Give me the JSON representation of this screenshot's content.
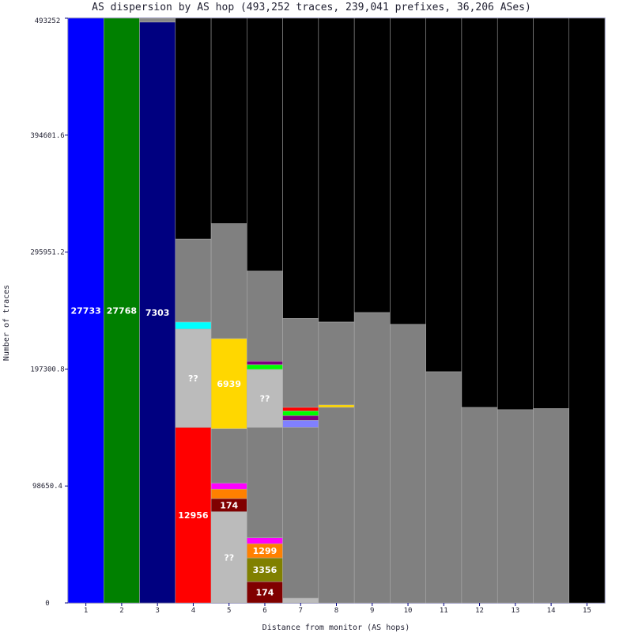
{
  "chart_data": {
    "type": "bar",
    "title": "AS dispersion by AS hop (493,252 traces, 239,041 prefixes, 36,206 ASes)",
    "xlabel": "Distance from monitor (AS hops)",
    "ylabel": "Number of traces",
    "ylim": [
      0,
      493252
    ],
    "yticks": [
      "0",
      "98650.4",
      "197300.8",
      "295951.2",
      "394601.6",
      "493252"
    ],
    "yticks_values": [
      0,
      98650.4,
      197300.8,
      295951.2,
      394601.6,
      493252
    ],
    "categories": [
      "1",
      "2",
      "3",
      "4",
      "5",
      "6",
      "7",
      "8",
      "9",
      "10",
      "11",
      "12",
      "13",
      "14",
      "15"
    ],
    "columns": [
      {
        "hop": "1",
        "segments": [
          {
            "label": "27733",
            "value": 493252,
            "color": "#0000ff"
          }
        ]
      },
      {
        "hop": "2",
        "segments": [
          {
            "label": "27768",
            "value": 493252,
            "color": "#008000"
          }
        ]
      },
      {
        "hop": "3",
        "segments": [
          {
            "label": "7303",
            "value": 490000,
            "color": "#000080"
          },
          {
            "label": "",
            "value": 3252,
            "color": "#888888"
          }
        ]
      },
      {
        "hop": "4",
        "segments": [
          {
            "label": "12956",
            "value": 148000,
            "color": "#ff0000"
          },
          {
            "label": "??",
            "value": 83000,
            "color": "#bbbbbb"
          },
          {
            "label": "",
            "value": 6000,
            "color": "#00ffff"
          },
          {
            "label": "",
            "value": 70000,
            "color": "#808080"
          },
          {
            "label": "",
            "value": 186252,
            "color": "#000000"
          }
        ]
      },
      {
        "hop": "5",
        "segments": [
          {
            "label": "??",
            "value": 77000,
            "color": "#bbbbbb"
          },
          {
            "label": "174",
            "value": 11000,
            "color": "#800000"
          },
          {
            "label": "",
            "value": 8000,
            "color": "#ff8000"
          },
          {
            "label": "",
            "value": 5000,
            "color": "#ff00ff"
          },
          {
            "label": "",
            "value": 46000,
            "color": "#808080"
          },
          {
            "label": "6939",
            "value": 76000,
            "color": "#ffd700"
          },
          {
            "label": "",
            "value": 97000,
            "color": "#808080"
          },
          {
            "label": "",
            "value": 173252,
            "color": "#000000"
          }
        ]
      },
      {
        "hop": "6",
        "segments": [
          {
            "label": "174",
            "value": 18000,
            "color": "#800000"
          },
          {
            "label": "3356",
            "value": 20000,
            "color": "#808000"
          },
          {
            "label": "1299",
            "value": 12000,
            "color": "#ff8000"
          },
          {
            "label": "",
            "value": 5000,
            "color": "#ff00ff"
          },
          {
            "label": "",
            "value": 93000,
            "color": "#808080"
          },
          {
            "label": "??",
            "value": 49000,
            "color": "#bbbbbb"
          },
          {
            "label": "",
            "value": 4000,
            "color": "#00ff00"
          },
          {
            "label": "",
            "value": 3000,
            "color": "#800080"
          },
          {
            "label": "",
            "value": 76000,
            "color": "#808080"
          },
          {
            "label": "",
            "value": 213252,
            "color": "#000000"
          }
        ]
      },
      {
        "hop": "7",
        "segments": [
          {
            "label": "",
            "value": 4000,
            "color": "#bbbbbb"
          },
          {
            "label": "",
            "value": 144000,
            "color": "#808080"
          },
          {
            "label": "",
            "value": 6000,
            "color": "#8080ff"
          },
          {
            "label": "",
            "value": 4000,
            "color": "#800080"
          },
          {
            "label": "",
            "value": 4000,
            "color": "#00ff00"
          },
          {
            "label": "",
            "value": 3000,
            "color": "#ff0000"
          },
          {
            "label": "",
            "value": 75000,
            "color": "#808080"
          },
          {
            "label": "",
            "value": 253252,
            "color": "#000000"
          }
        ]
      },
      {
        "hop": "8",
        "segments": [
          {
            "label": "",
            "value": 165000,
            "color": "#808080"
          },
          {
            "label": "",
            "value": 2000,
            "color": "#ffd700"
          },
          {
            "label": "",
            "value": 70000,
            "color": "#808080"
          },
          {
            "label": "",
            "value": 256252,
            "color": "#000000"
          }
        ]
      },
      {
        "hop": "9",
        "segments": [
          {
            "label": "",
            "value": 245000,
            "color": "#808080"
          },
          {
            "label": "",
            "value": 248252,
            "color": "#000000"
          }
        ]
      },
      {
        "hop": "10",
        "segments": [
          {
            "label": "",
            "value": 235000,
            "color": "#808080"
          },
          {
            "label": "",
            "value": 258252,
            "color": "#000000"
          }
        ]
      },
      {
        "hop": "11",
        "segments": [
          {
            "label": "",
            "value": 195000,
            "color": "#808080"
          },
          {
            "label": "",
            "value": 298252,
            "color": "#000000"
          }
        ]
      },
      {
        "hop": "12",
        "segments": [
          {
            "label": "",
            "value": 165000,
            "color": "#808080"
          },
          {
            "label": "",
            "value": 328252,
            "color": "#000000"
          }
        ]
      },
      {
        "hop": "13",
        "segments": [
          {
            "label": "",
            "value": 163000,
            "color": "#808080"
          },
          {
            "label": "",
            "value": 330252,
            "color": "#000000"
          }
        ]
      },
      {
        "hop": "14",
        "segments": [
          {
            "label": "",
            "value": 164000,
            "color": "#808080"
          },
          {
            "label": "",
            "value": 329252,
            "color": "#000000"
          }
        ]
      },
      {
        "hop": "15",
        "segments": [
          {
            "label": "",
            "value": 493252,
            "color": "#000000"
          }
        ]
      }
    ],
    "grid": false,
    "legend": "none"
  }
}
